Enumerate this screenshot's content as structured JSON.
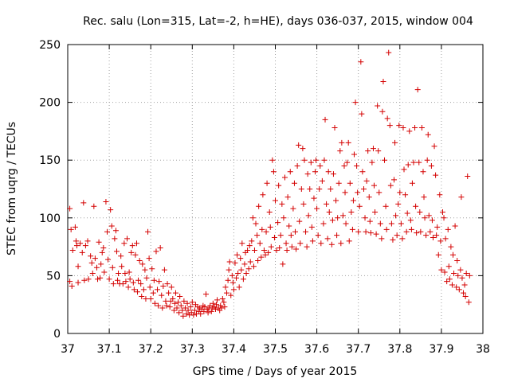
{
  "chart_data": {
    "type": "scatter",
    "title": "Rec. salu (Lon=315, Lat=-2, h=HE), days 036-037, 2015, window 004",
    "xlabel": "GPS time / Days of year 2015",
    "ylabel": "STEC from uqrg / TECUs",
    "xlim": [
      37,
      38
    ],
    "ylim": [
      0,
      250
    ],
    "x_ticks": [
      "37",
      "37.1",
      "37.2",
      "37.3",
      "37.4",
      "37.5",
      "37.6",
      "37.7",
      "37.8",
      "37.9",
      "38"
    ],
    "y_ticks": [
      "0",
      "50",
      "100",
      "150",
      "200",
      "250"
    ],
    "grid": true,
    "marker": "+",
    "color": "#d40000",
    "points": [
      [
        37.005,
        108
      ],
      [
        37.008,
        90
      ],
      [
        37.012,
        72
      ],
      [
        37.005,
        45
      ],
      [
        37.01,
        41
      ],
      [
        37.018,
        92
      ],
      [
        37.02,
        80
      ],
      [
        37.022,
        76
      ],
      [
        37.025,
        58
      ],
      [
        37.025,
        44
      ],
      [
        37.03,
        78
      ],
      [
        37.035,
        70
      ],
      [
        37.038,
        113
      ],
      [
        37.04,
        46
      ],
      [
        37.043,
        76
      ],
      [
        37.048,
        80
      ],
      [
        37.05,
        47
      ],
      [
        37.055,
        67
      ],
      [
        37.058,
        61
      ],
      [
        37.06,
        52
      ],
      [
        37.063,
        110
      ],
      [
        37.066,
        65
      ],
      [
        37.07,
        57
      ],
      [
        37.072,
        47
      ],
      [
        37.075,
        79
      ],
      [
        37.078,
        48
      ],
      [
        37.08,
        60
      ],
      [
        37.083,
        70
      ],
      [
        37.086,
        74
      ],
      [
        37.088,
        53
      ],
      [
        37.092,
        114
      ],
      [
        37.095,
        88
      ],
      [
        37.097,
        64
      ],
      [
        37.1,
        47
      ],
      [
        37.103,
        107
      ],
      [
        37.106,
        93
      ],
      [
        37.108,
        57
      ],
      [
        37.11,
        43
      ],
      [
        37.113,
        82
      ],
      [
        37.116,
        89
      ],
      [
        37.118,
        71
      ],
      [
        37.12,
        46
      ],
      [
        37.122,
        52
      ],
      [
        37.125,
        43
      ],
      [
        37.128,
        67
      ],
      [
        37.13,
        58
      ],
      [
        37.133,
        43
      ],
      [
        37.136,
        78
      ],
      [
        37.138,
        52
      ],
      [
        37.14,
        45
      ],
      [
        37.143,
        82
      ],
      [
        37.146,
        40
      ],
      [
        37.148,
        53
      ],
      [
        37.15,
        47
      ],
      [
        37.153,
        70
      ],
      [
        37.156,
        76
      ],
      [
        37.158,
        44
      ],
      [
        37.16,
        38
      ],
      [
        37.163,
        68
      ],
      [
        37.166,
        78
      ],
      [
        37.168,
        36
      ],
      [
        37.17,
        46
      ],
      [
        37.173,
        63
      ],
      [
        37.176,
        43
      ],
      [
        37.178,
        32
      ],
      [
        37.18,
        60
      ],
      [
        37.183,
        38
      ],
      [
        37.186,
        55
      ],
      [
        37.188,
        30
      ],
      [
        37.19,
        48
      ],
      [
        37.193,
        88
      ],
      [
        37.196,
        65
      ],
      [
        37.198,
        40
      ],
      [
        37.2,
        30
      ],
      [
        37.203,
        56
      ],
      [
        37.206,
        35
      ],
      [
        37.208,
        46
      ],
      [
        37.21,
        26
      ],
      [
        37.213,
        71
      ],
      [
        37.216,
        38
      ],
      [
        37.218,
        24
      ],
      [
        37.22,
        45
      ],
      [
        37.223,
        74
      ],
      [
        37.226,
        33
      ],
      [
        37.228,
        22
      ],
      [
        37.23,
        41
      ],
      [
        37.233,
        55
      ],
      [
        37.236,
        28
      ],
      [
        37.238,
        24
      ],
      [
        37.24,
        43
      ],
      [
        37.243,
        35
      ],
      [
        37.246,
        23
      ],
      [
        37.248,
        28
      ],
      [
        37.25,
        40
      ],
      [
        37.253,
        30
      ],
      [
        37.256,
        20
      ],
      [
        37.258,
        26
      ],
      [
        37.26,
        35
      ],
      [
        37.263,
        22
      ],
      [
        37.266,
        27
      ],
      [
        37.268,
        18
      ],
      [
        37.27,
        32
      ],
      [
        37.273,
        24
      ],
      [
        37.276,
        20
      ],
      [
        37.278,
        15
      ],
      [
        37.28,
        28
      ],
      [
        37.283,
        22
      ],
      [
        37.286,
        17
      ],
      [
        37.288,
        26
      ],
      [
        37.29,
        20
      ],
      [
        37.293,
        16
      ],
      [
        37.296,
        23
      ],
      [
        37.298,
        18
      ],
      [
        37.3,
        27
      ],
      [
        37.303,
        16
      ],
      [
        37.306,
        20
      ],
      [
        37.308,
        25
      ],
      [
        37.31,
        17
      ],
      [
        37.313,
        23
      ],
      [
        37.316,
        19
      ],
      [
        37.318,
        22
      ],
      [
        37.32,
        17
      ],
      [
        37.323,
        21
      ],
      [
        37.326,
        24
      ],
      [
        37.328,
        19
      ],
      [
        37.33,
        23
      ],
      [
        37.333,
        34
      ],
      [
        37.336,
        21
      ],
      [
        37.338,
        18
      ],
      [
        37.34,
        22
      ],
      [
        37.343,
        24
      ],
      [
        37.346,
        19
      ],
      [
        37.348,
        22
      ],
      [
        37.35,
        26
      ],
      [
        37.353,
        23
      ],
      [
        37.356,
        21
      ],
      [
        37.358,
        25
      ],
      [
        37.36,
        29
      ],
      [
        37.363,
        22
      ],
      [
        37.366,
        20
      ],
      [
        37.368,
        24
      ],
      [
        37.37,
        22
      ],
      [
        37.373,
        30
      ],
      [
        37.376,
        27
      ],
      [
        37.378,
        23
      ],
      [
        37.38,
        40
      ],
      [
        37.383,
        35
      ],
      [
        37.386,
        46
      ],
      [
        37.388,
        55
      ],
      [
        37.39,
        62
      ],
      [
        37.393,
        33
      ],
      [
        37.396,
        50
      ],
      [
        37.398,
        44
      ],
      [
        37.4,
        38
      ],
      [
        37.403,
        61
      ],
      [
        37.406,
        48
      ],
      [
        37.408,
        68
      ],
      [
        37.41,
        52
      ],
      [
        37.413,
        40
      ],
      [
        37.416,
        65
      ],
      [
        37.418,
        55
      ],
      [
        37.42,
        78
      ],
      [
        37.423,
        47
      ],
      [
        37.426,
        60
      ],
      [
        37.428,
        70
      ],
      [
        37.43,
        52
      ],
      [
        37.433,
        72
      ],
      [
        37.436,
        56
      ],
      [
        37.438,
        76
      ],
      [
        37.44,
        62
      ],
      [
        37.443,
        80
      ],
      [
        37.446,
        100
      ],
      [
        37.448,
        58
      ],
      [
        37.45,
        72
      ],
      [
        37.453,
        95
      ],
      [
        37.456,
        85
      ],
      [
        37.458,
        63
      ],
      [
        37.46,
        110
      ],
      [
        37.463,
        78
      ],
      [
        37.466,
        66
      ],
      [
        37.468,
        90
      ],
      [
        37.47,
        120
      ],
      [
        37.473,
        72
      ],
      [
        37.476,
        68
      ],
      [
        37.478,
        88
      ],
      [
        37.48,
        130
      ],
      [
        37.483,
        70
      ],
      [
        37.486,
        105
      ],
      [
        37.488,
        92
      ],
      [
        37.49,
        75
      ],
      [
        37.493,
        150
      ],
      [
        37.496,
        140
      ],
      [
        37.498,
        83
      ],
      [
        37.5,
        115
      ],
      [
        37.503,
        72
      ],
      [
        37.506,
        96
      ],
      [
        37.508,
        128
      ],
      [
        37.51,
        74
      ],
      [
        37.513,
        85
      ],
      [
        37.516,
        112
      ],
      [
        37.518,
        60
      ],
      [
        37.52,
        100
      ],
      [
        37.523,
        135
      ],
      [
        37.526,
        78
      ],
      [
        37.528,
        72
      ],
      [
        37.53,
        118
      ],
      [
        37.533,
        93
      ],
      [
        37.536,
        140
      ],
      [
        37.538,
        85
      ],
      [
        37.54,
        75
      ],
      [
        37.543,
        108
      ],
      [
        37.546,
        130
      ],
      [
        37.548,
        88
      ],
      [
        37.55,
        73
      ],
      [
        37.553,
        145
      ],
      [
        37.556,
        163
      ],
      [
        37.558,
        97
      ],
      [
        37.56,
        78
      ],
      [
        37.563,
        125
      ],
      [
        37.566,
        160
      ],
      [
        37.568,
        112
      ],
      [
        37.57,
        150
      ],
      [
        37.573,
        88
      ],
      [
        37.576,
        75
      ],
      [
        37.578,
        138
      ],
      [
        37.58,
        102
      ],
      [
        37.583,
        125
      ],
      [
        37.586,
        148
      ],
      [
        37.588,
        92
      ],
      [
        37.59,
        80
      ],
      [
        37.593,
        117
      ],
      [
        37.596,
        140
      ],
      [
        37.598,
        150
      ],
      [
        37.6,
        108
      ],
      [
        37.603,
        85
      ],
      [
        37.606,
        125
      ],
      [
        37.608,
        145
      ],
      [
        37.61,
        78
      ],
      [
        37.613,
        132
      ],
      [
        37.616,
        95
      ],
      [
        37.618,
        150
      ],
      [
        37.62,
        185
      ],
      [
        37.623,
        112
      ],
      [
        37.626,
        82
      ],
      [
        37.628,
        140
      ],
      [
        37.63,
        105
      ],
      [
        37.633,
        125
      ],
      [
        37.636,
        77
      ],
      [
        37.638,
        98
      ],
      [
        37.64,
        138
      ],
      [
        37.643,
        178
      ],
      [
        37.646,
        115
      ],
      [
        37.648,
        85
      ],
      [
        37.65,
        100
      ],
      [
        37.653,
        130
      ],
      [
        37.656,
        158
      ],
      [
        37.658,
        78
      ],
      [
        37.66,
        165
      ],
      [
        37.663,
        102
      ],
      [
        37.666,
        145
      ],
      [
        37.668,
        122
      ],
      [
        37.67,
        95
      ],
      [
        37.673,
        148
      ],
      [
        37.676,
        165
      ],
      [
        37.678,
        80
      ],
      [
        37.68,
        130
      ],
      [
        37.683,
        105
      ],
      [
        37.686,
        90
      ],
      [
        37.688,
        115
      ],
      [
        37.69,
        155
      ],
      [
        37.693,
        200
      ],
      [
        37.696,
        145
      ],
      [
        37.698,
        122
      ],
      [
        37.7,
        88
      ],
      [
        37.703,
        110
      ],
      [
        37.706,
        235
      ],
      [
        37.708,
        190
      ],
      [
        37.71,
        140
      ],
      [
        37.713,
        125
      ],
      [
        37.716,
        100
      ],
      [
        37.718,
        88
      ],
      [
        37.72,
        132
      ],
      [
        37.723,
        158
      ],
      [
        37.726,
        118
      ],
      [
        37.728,
        97
      ],
      [
        37.73,
        87
      ],
      [
        37.733,
        148
      ],
      [
        37.736,
        160
      ],
      [
        37.738,
        128
      ],
      [
        37.74,
        105
      ],
      [
        37.743,
        86
      ],
      [
        37.746,
        197
      ],
      [
        37.748,
        158
      ],
      [
        37.75,
        122
      ],
      [
        37.753,
        95
      ],
      [
        37.756,
        82
      ],
      [
        37.758,
        192
      ],
      [
        37.76,
        218
      ],
      [
        37.763,
        150
      ],
      [
        37.766,
        110
      ],
      [
        37.768,
        90
      ],
      [
        37.77,
        186
      ],
      [
        37.773,
        243
      ],
      [
        37.776,
        180
      ],
      [
        37.778,
        128
      ],
      [
        37.78,
        95
      ],
      [
        37.783,
        81
      ],
      [
        37.786,
        133
      ],
      [
        37.788,
        165
      ],
      [
        37.79,
        102
      ],
      [
        37.793,
        85
      ],
      [
        37.796,
        112
      ],
      [
        37.798,
        180
      ],
      [
        37.8,
        122
      ],
      [
        37.803,
        95
      ],
      [
        37.806,
        82
      ],
      [
        37.808,
        178
      ],
      [
        37.81,
        142
      ],
      [
        37.813,
        120
      ],
      [
        37.816,
        88
      ],
      [
        37.818,
        104
      ],
      [
        37.82,
        146
      ],
      [
        37.823,
        175
      ],
      [
        37.826,
        98
      ],
      [
        37.828,
        90
      ],
      [
        37.83,
        130
      ],
      [
        37.833,
        148
      ],
      [
        37.836,
        178
      ],
      [
        37.838,
        110
      ],
      [
        37.84,
        87
      ],
      [
        37.843,
        211
      ],
      [
        37.846,
        148
      ],
      [
        37.848,
        105
      ],
      [
        37.85,
        88
      ],
      [
        37.853,
        178
      ],
      [
        37.856,
        140
      ],
      [
        37.858,
        118
      ],
      [
        37.86,
        100
      ],
      [
        37.863,
        85
      ],
      [
        37.866,
        150
      ],
      [
        37.868,
        172
      ],
      [
        37.87,
        102
      ],
      [
        37.873,
        88
      ],
      [
        37.876,
        145
      ],
      [
        37.878,
        98
      ],
      [
        37.88,
        83
      ],
      [
        37.883,
        162
      ],
      [
        37.886,
        137
      ],
      [
        37.888,
        85
      ],
      [
        37.89,
        92
      ],
      [
        37.893,
        68
      ],
      [
        37.896,
        120
      ],
      [
        37.898,
        80
      ],
      [
        37.9,
        55
      ],
      [
        37.903,
        105
      ],
      [
        37.906,
        100
      ],
      [
        37.908,
        53
      ],
      [
        37.91,
        82
      ],
      [
        37.913,
        45
      ],
      [
        37.916,
        90
      ],
      [
        37.918,
        58
      ],
      [
        37.92,
        47
      ],
      [
        37.923,
        75
      ],
      [
        37.926,
        42
      ],
      [
        37.928,
        68
      ],
      [
        37.93,
        52
      ],
      [
        37.933,
        93
      ],
      [
        37.936,
        40
      ],
      [
        37.938,
        63
      ],
      [
        37.94,
        50
      ],
      [
        37.943,
        38
      ],
      [
        37.946,
        55
      ],
      [
        37.948,
        118
      ],
      [
        37.95,
        48
      ],
      [
        37.953,
        35
      ],
      [
        37.956,
        42
      ],
      [
        37.958,
        32
      ],
      [
        37.96,
        52
      ],
      [
        37.963,
        136
      ],
      [
        37.966,
        27
      ],
      [
        37.968,
        50
      ]
    ]
  }
}
